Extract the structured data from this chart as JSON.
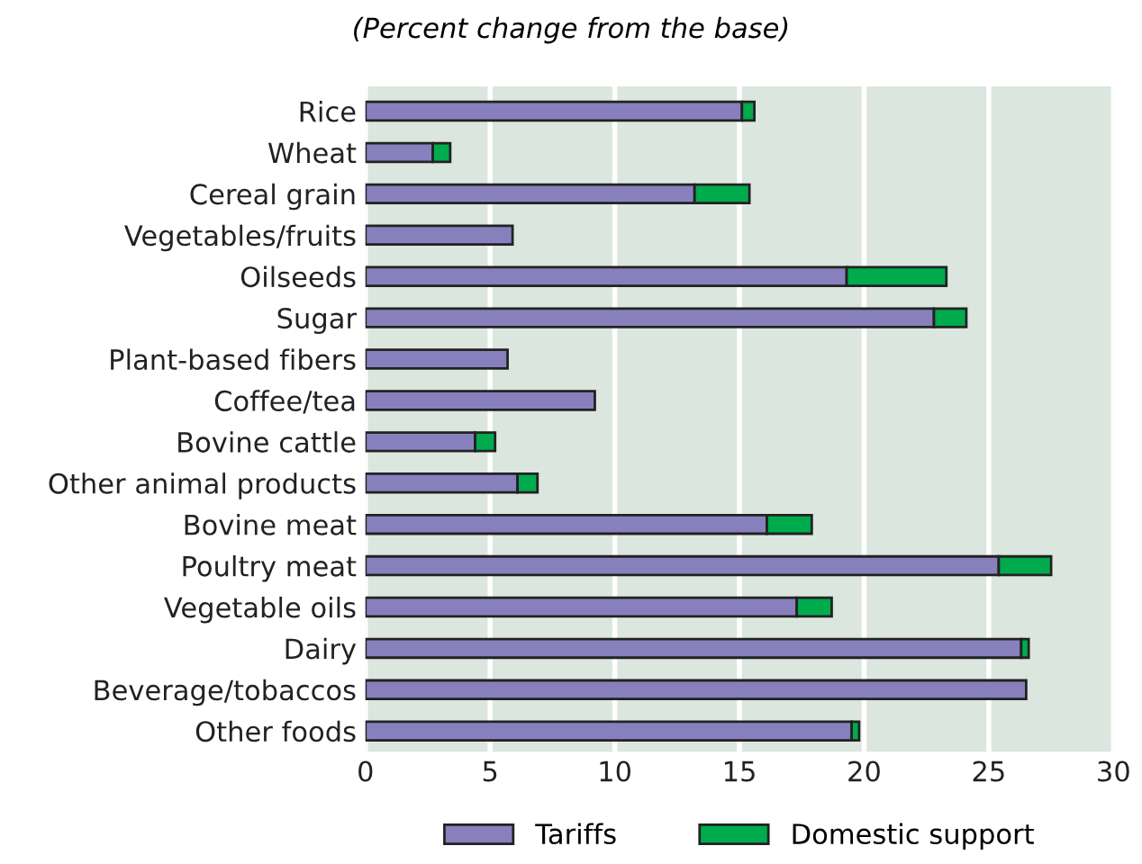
{
  "chart_data": {
    "type": "bar",
    "orientation": "horizontal",
    "stacked": true,
    "subtitle": "(Percent change from the base)",
    "categories": [
      "Rice",
      "Wheat",
      "Cereal grain",
      "Vegetables/fruits",
      "Oilseeds",
      "Sugar",
      "Plant-based fibers",
      "Coffee/tea",
      "Bovine cattle",
      "Other animal products",
      "Bovine meat",
      "Poultry meat",
      "Vegetable oils",
      "Dairy",
      "Beverage/tobaccos",
      "Other foods"
    ],
    "series": [
      {
        "name": "Tariffs",
        "color": "#8880bd",
        "values": [
          15.1,
          2.7,
          13.2,
          5.9,
          19.3,
          22.8,
          5.7,
          9.2,
          4.4,
          6.1,
          16.1,
          25.4,
          17.3,
          26.3,
          26.5,
          19.5
        ]
      },
      {
        "name": "Domestic support",
        "color": "#00ab4e",
        "values": [
          0.5,
          0.7,
          2.2,
          null,
          4.0,
          1.3,
          null,
          null,
          0.8,
          0.8,
          1.8,
          2.1,
          1.4,
          0.3,
          null,
          0.3
        ]
      }
    ],
    "xlim": [
      0,
      30
    ],
    "xticks": [
      0,
      5,
      10,
      15,
      20,
      25,
      30
    ],
    "grid": "x",
    "legend": "bottom"
  }
}
